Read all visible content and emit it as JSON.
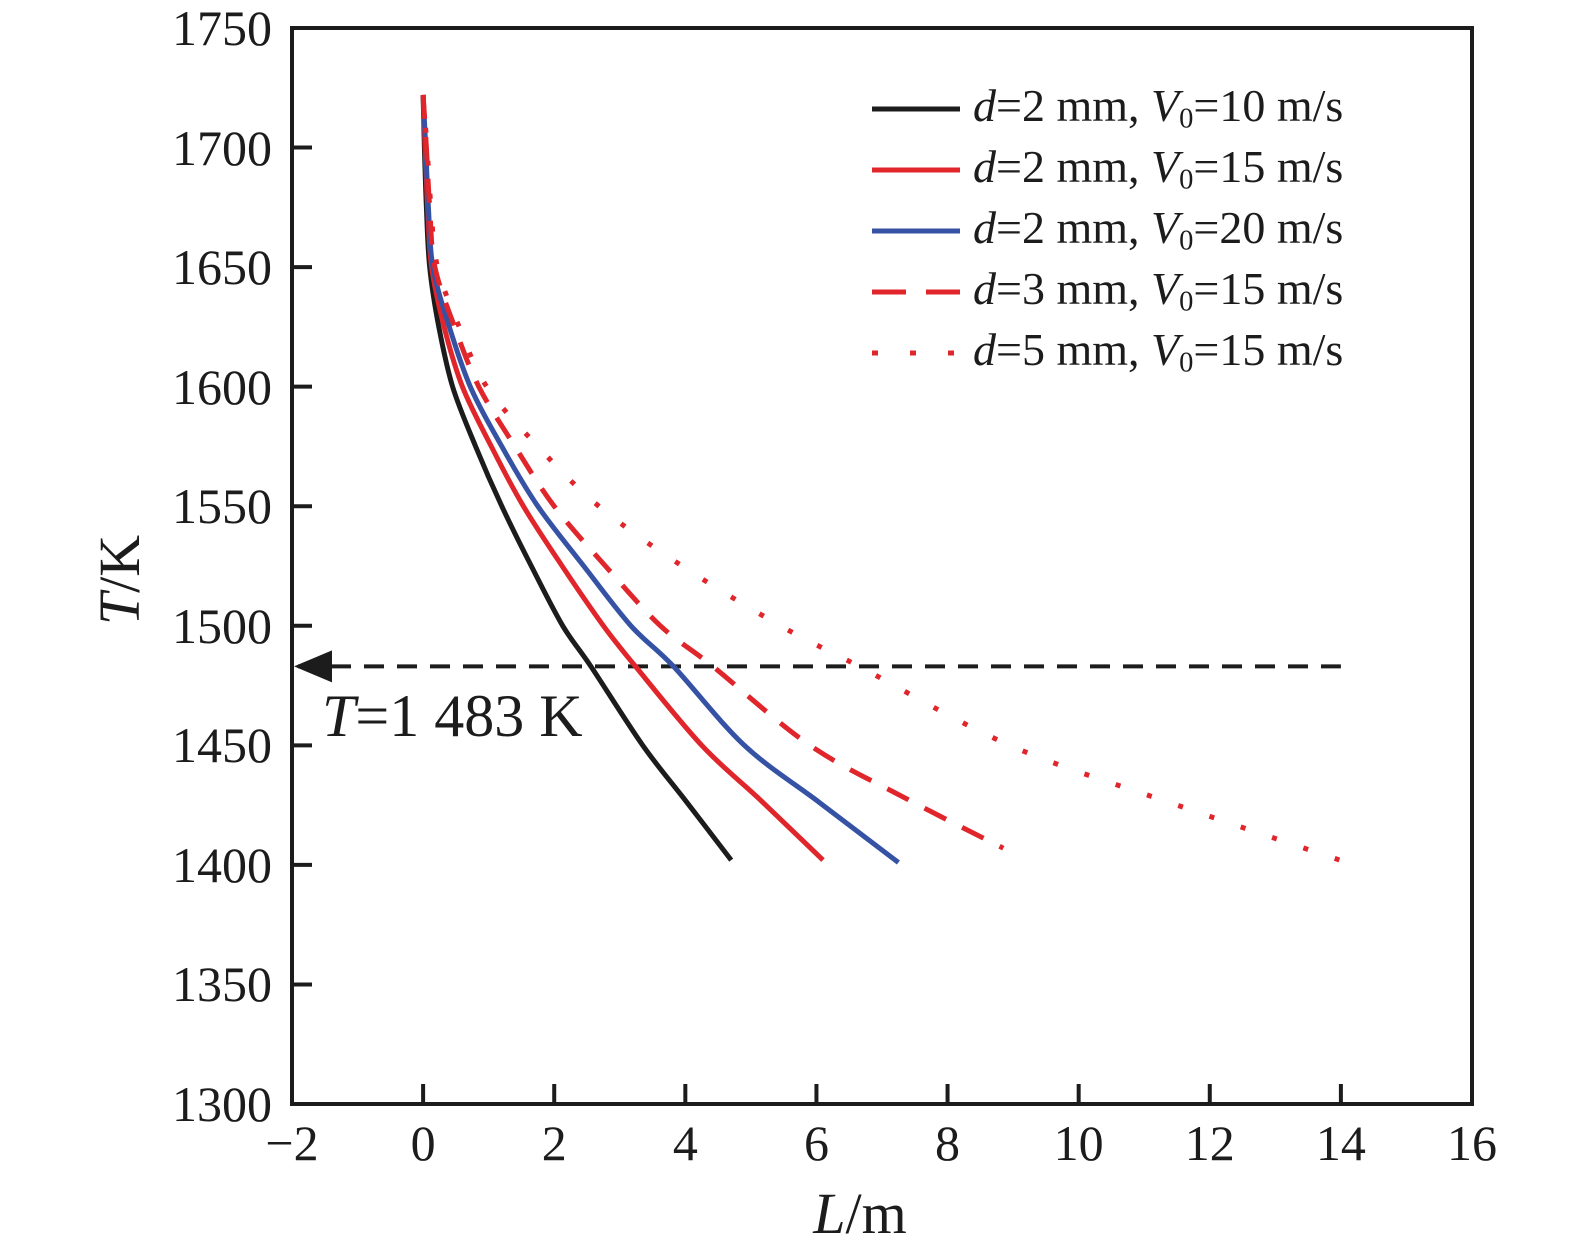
{
  "chart_data": {
    "type": "line",
    "xlabel_symbol": "L",
    "xlabel_unit": "/m",
    "ylabel_symbol": "T",
    "ylabel_unit": "/K",
    "xlim": [
      -2,
      16
    ],
    "ylim": [
      1300,
      1750
    ],
    "xtick_values": [
      -2,
      0,
      2,
      4,
      6,
      8,
      10,
      12,
      14,
      16
    ],
    "xtick_labels": [
      "−2",
      "0",
      "2",
      "4",
      "6",
      "8",
      "10",
      "12",
      "14",
      "16"
    ],
    "ytick_values": [
      1300,
      1350,
      1400,
      1450,
      1500,
      1550,
      1600,
      1650,
      1700,
      1750
    ],
    "ytick_labels": [
      "1300",
      "1350",
      "1400",
      "1450",
      "1500",
      "1550",
      "1600",
      "1650",
      "1700",
      "1750"
    ],
    "grid": false,
    "legend_position": "upper-right",
    "colors": {
      "black": "#1c1c1c",
      "red": "#e0252b",
      "blue": "#3552a4"
    },
    "annotation": {
      "symbol": "T",
      "rest": "=1 483 K",
      "temperature": 1483,
      "line_from_x": -2,
      "line_to_x": 14,
      "arrow_direction": "left"
    },
    "series": [
      {
        "name": "d=2 mm, V0=10 m/s",
        "legend": {
          "d_sym": "d",
          "d_eq": "=2 mm, ",
          "v_sym": "V",
          "v_sub": "0",
          "v_eq": "=10 m/s"
        },
        "color": "#1c1c1c",
        "style": "solid",
        "points": [
          [
            0,
            1722
          ],
          [
            0.02,
            1700
          ],
          [
            0.05,
            1675
          ],
          [
            0.1,
            1650
          ],
          [
            0.24,
            1625
          ],
          [
            0.45,
            1600
          ],
          [
            0.8,
            1575
          ],
          [
            1.2,
            1550
          ],
          [
            1.65,
            1525
          ],
          [
            2.13,
            1500
          ],
          [
            2.56,
            1483
          ],
          [
            3.35,
            1450
          ],
          [
            4.0,
            1427
          ],
          [
            4.7,
            1402
          ]
        ]
      },
      {
        "name": "d=2 mm, V0=15 m/s",
        "legend": {
          "d_sym": "d",
          "d_eq": "=2 mm, ",
          "v_sym": "V",
          "v_sub": "0",
          "v_eq": "=15 m/s"
        },
        "color": "#e0252b",
        "style": "solid",
        "points": [
          [
            0,
            1722
          ],
          [
            0.03,
            1700
          ],
          [
            0.07,
            1675
          ],
          [
            0.13,
            1650
          ],
          [
            0.32,
            1625
          ],
          [
            0.6,
            1600
          ],
          [
            1.04,
            1575
          ],
          [
            1.53,
            1550
          ],
          [
            2.12,
            1525
          ],
          [
            2.75,
            1500
          ],
          [
            3.24,
            1483
          ],
          [
            4.25,
            1450
          ],
          [
            5.15,
            1427
          ],
          [
            6.1,
            1402
          ]
        ]
      },
      {
        "name": "d=2 mm, V0=20 m/s",
        "legend": {
          "d_sym": "d",
          "d_eq": "=2 mm, ",
          "v_sym": "V",
          "v_sub": "0",
          "v_eq": "=20 m/s"
        },
        "color": "#3552a4",
        "style": "solid",
        "points": [
          [
            0,
            1722
          ],
          [
            0.04,
            1700
          ],
          [
            0.08,
            1675
          ],
          [
            0.15,
            1650
          ],
          [
            0.4,
            1625
          ],
          [
            0.72,
            1600
          ],
          [
            1.2,
            1575
          ],
          [
            1.75,
            1550
          ],
          [
            2.45,
            1525
          ],
          [
            3.17,
            1500
          ],
          [
            3.82,
            1483
          ],
          [
            4.9,
            1450
          ],
          [
            6.05,
            1426
          ],
          [
            7.25,
            1401
          ]
        ]
      },
      {
        "name": "d=3 mm, V0=15 m/s",
        "legend": {
          "d_sym": "d",
          "d_eq": "=3 mm, ",
          "v_sym": "V",
          "v_sub": "0",
          "v_eq": "=15 m/s"
        },
        "color": "#e0252b",
        "style": "dashed",
        "points": [
          [
            0,
            1722
          ],
          [
            0.05,
            1700
          ],
          [
            0.1,
            1675
          ],
          [
            0.18,
            1650
          ],
          [
            0.48,
            1625
          ],
          [
            0.85,
            1600
          ],
          [
            1.4,
            1575
          ],
          [
            2.0,
            1550
          ],
          [
            2.78,
            1525
          ],
          [
            3.62,
            1500
          ],
          [
            4.42,
            1483
          ],
          [
            5.9,
            1450
          ],
          [
            7.35,
            1428
          ],
          [
            8.85,
            1407
          ]
        ]
      },
      {
        "name": "d=5 mm, V0=15 m/s",
        "legend": {
          "d_sym": "d",
          "d_eq": "=5 mm, ",
          "v_sym": "V",
          "v_sub": "0",
          "v_eq": "=15 m/s"
        },
        "color": "#e0252b",
        "style": "dotted",
        "points": [
          [
            0,
            1722
          ],
          [
            0.06,
            1700
          ],
          [
            0.12,
            1675
          ],
          [
            0.22,
            1650
          ],
          [
            0.55,
            1625
          ],
          [
            0.97,
            1600
          ],
          [
            1.75,
            1575
          ],
          [
            2.68,
            1550
          ],
          [
            3.95,
            1525
          ],
          [
            5.45,
            1500
          ],
          [
            6.65,
            1483
          ],
          [
            8.95,
            1450
          ],
          [
            11.5,
            1425
          ],
          [
            14.2,
            1400
          ]
        ]
      }
    ]
  }
}
